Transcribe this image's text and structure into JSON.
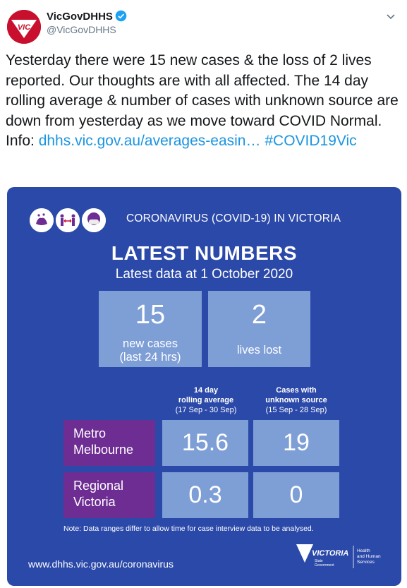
{
  "header": {
    "display_name": "VicGovDHHS",
    "handle": "@VicGovDHHS",
    "avatar_text": "VIC"
  },
  "tweet": {
    "text": "Yesterday there were 15 new cases & the loss of 2 lives reported. Our thoughts are with all affected. The 14 day rolling average & number of cases with unknown source are down from yesterday as we move toward COVID Normal. Info: ",
    "link_text": "dhhs.vic.gov.au/averages-easin…",
    "hashtag": "#COVID19Vic"
  },
  "card": {
    "header_label": "CORONAVIRUS (COVID-19) IN VICTORIA",
    "title": "LATEST NUMBERS",
    "subtitle": "Latest data at 1 October 2020",
    "stat_new_cases": {
      "value": "15",
      "label_line1": "new cases",
      "label_line2": "(last 24 hrs)"
    },
    "stat_lives_lost": {
      "value": "2",
      "label": "lives lost"
    },
    "col1_head_line1": "14 day",
    "col1_head_line2": "rolling average",
    "col1_range": "(17 Sep - 30 Sep)",
    "col2_head_line1": "Cases with",
    "col2_head_line2": "unknown source",
    "col2_range": "(15 Sep - 28 Sep)",
    "rows": [
      {
        "label_line1": "Metro",
        "label_line2": "Melbourne",
        "avg": "15.6",
        "unknown": "19"
      },
      {
        "label_line1": "Regional",
        "label_line2": "Victoria",
        "avg": "0.3",
        "unknown": "0"
      }
    ],
    "note": "Note: Data ranges differ to allow time for case interview data to be analysed.",
    "url": "www.dhhs.vic.gov.au/coronavirus",
    "logo_word": "VICTORIA",
    "logo_sub1": "State",
    "logo_sub2": "Government",
    "logo_dept1": "Health",
    "logo_dept2": "and Human",
    "logo_dept3": "Services"
  },
  "colors": {
    "card_bg": "#2b49a8",
    "box_bg": "#7e9ed6",
    "row_label_bg": "#6d2d93",
    "link": "#1b95e0"
  }
}
